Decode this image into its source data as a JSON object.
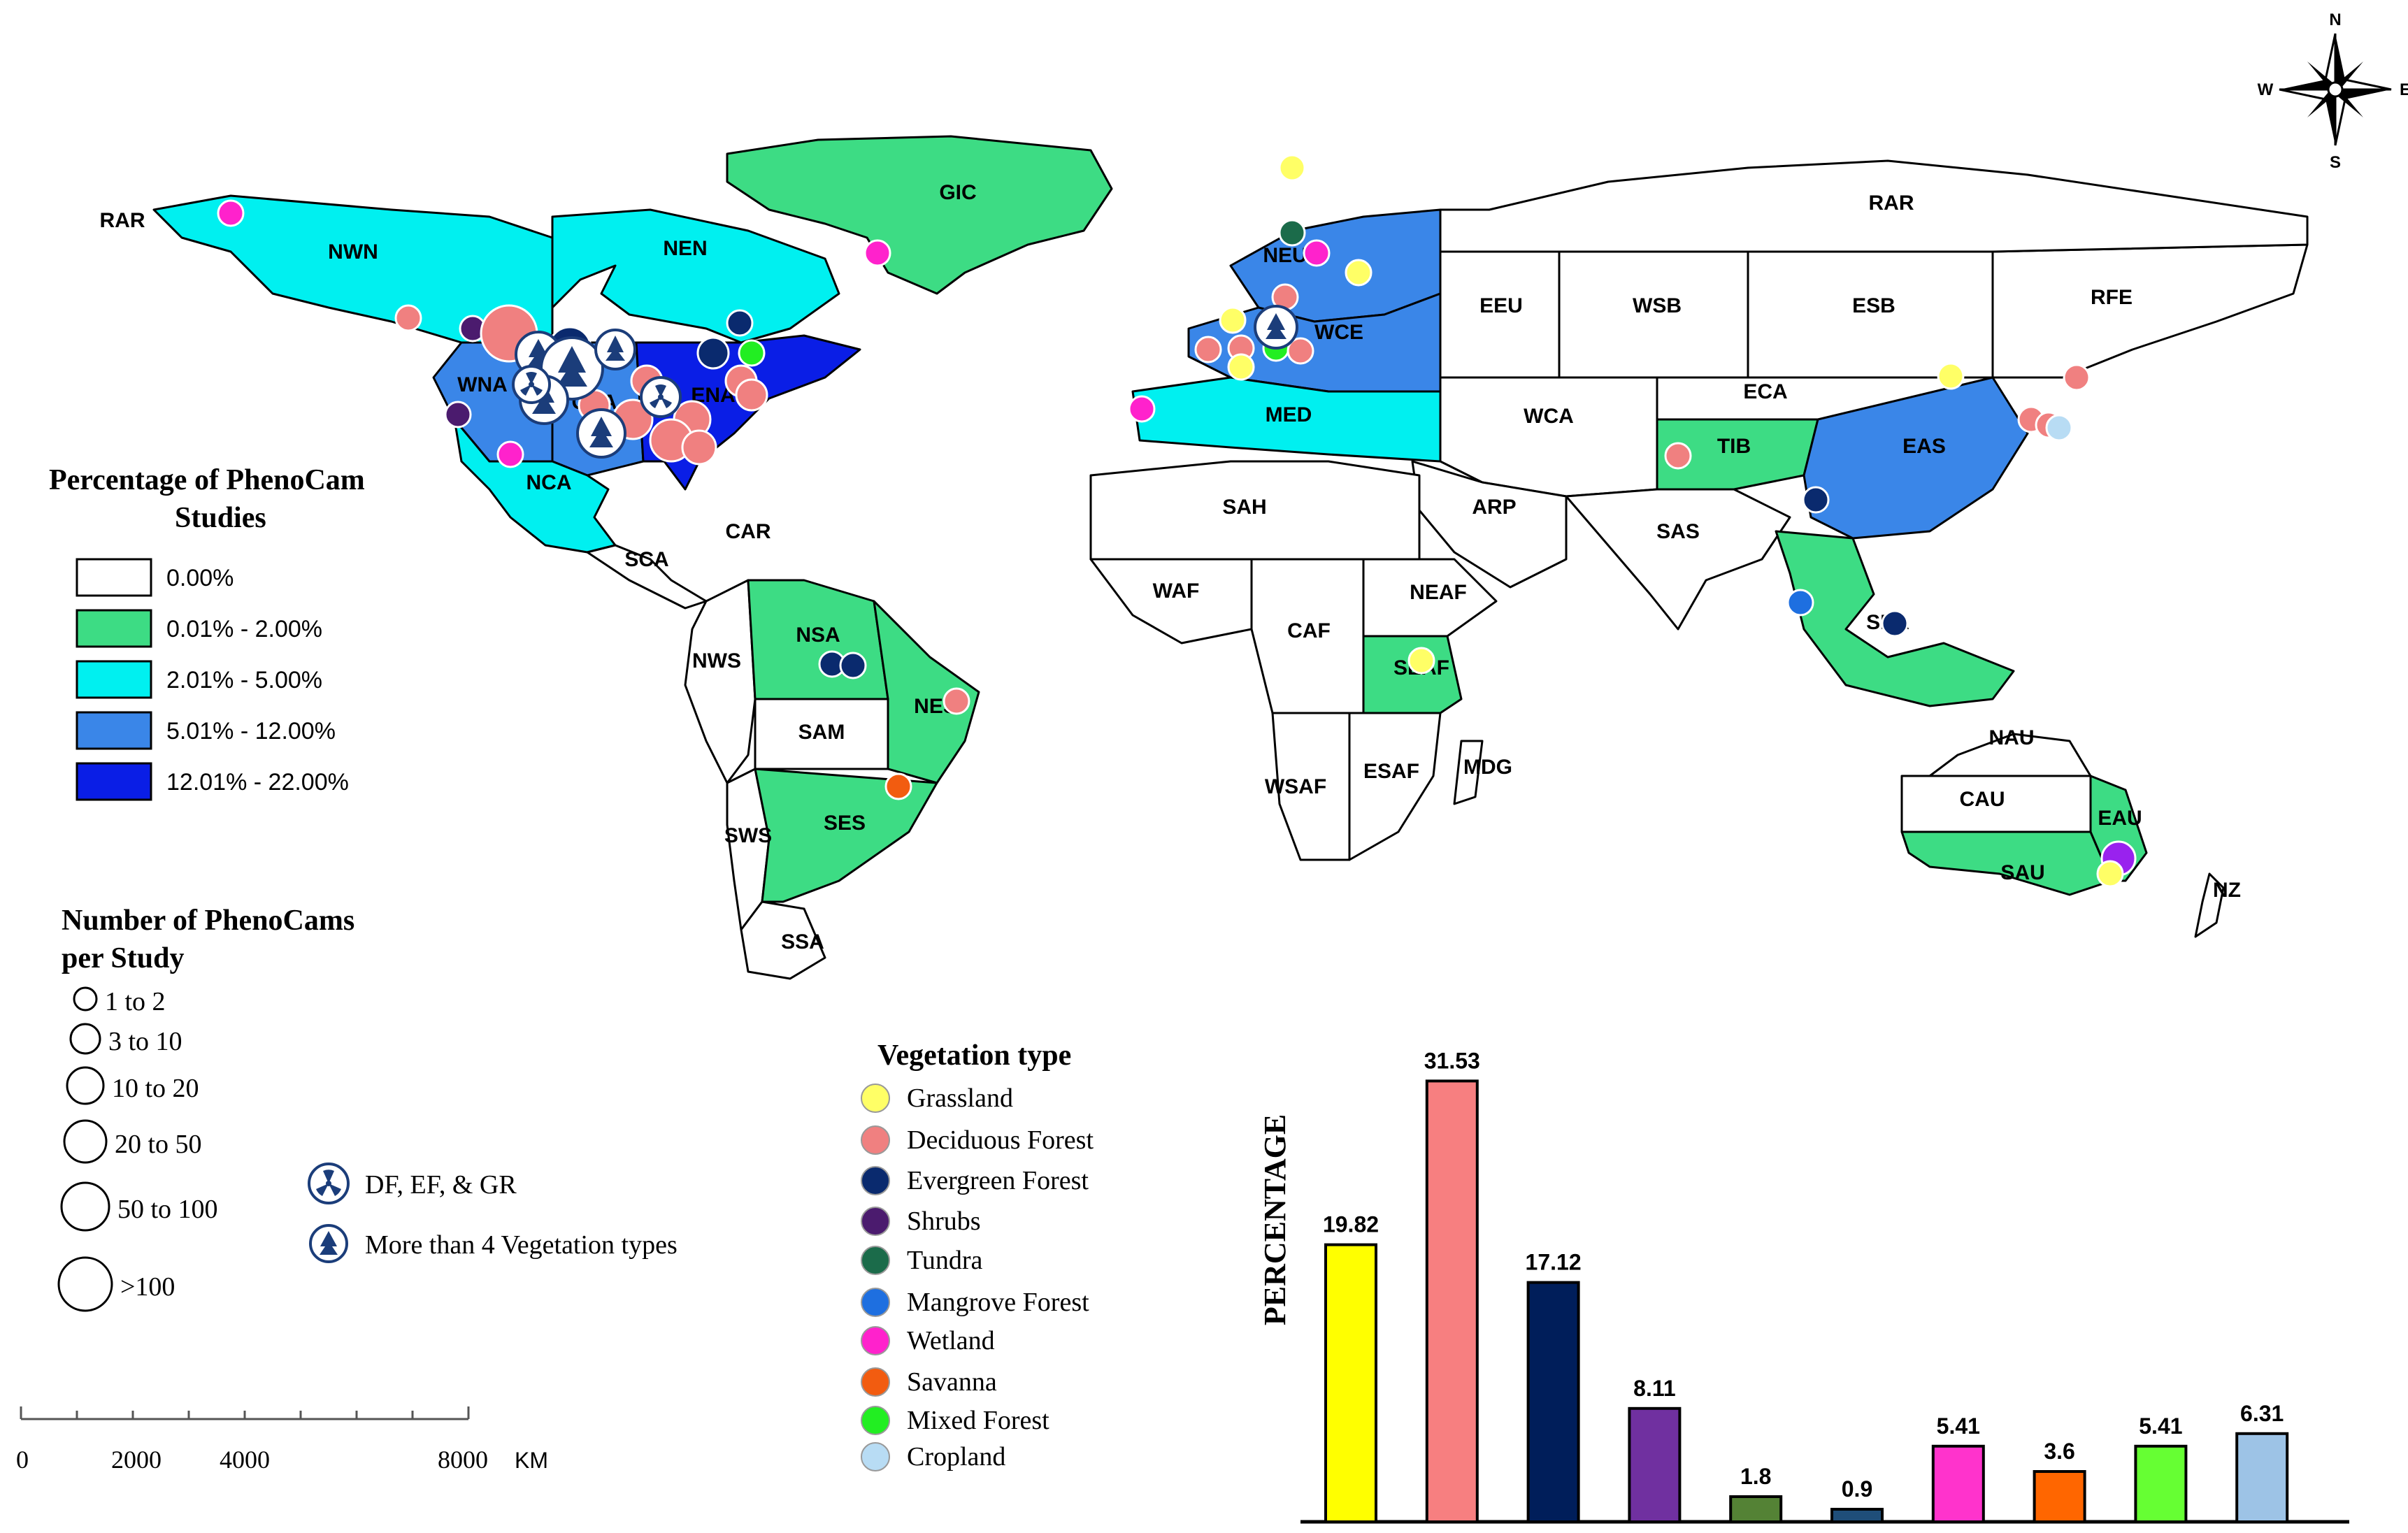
{
  "map": {
    "region_labels": [
      "RAR",
      "NWN",
      "NEN",
      "GIC",
      "WNA",
      "CNA",
      "ENA",
      "NCA",
      "CAR",
      "SCA",
      "NWS",
      "NSA",
      "NES",
      "SAM",
      "SWS",
      "SES",
      "SSA",
      "NEU",
      "WCE",
      "MED",
      "EEU",
      "WSB",
      "ESB",
      "RFE",
      "WCA",
      "ECA",
      "TIB",
      "EAS",
      "SAS",
      "ARP",
      "SAH",
      "WAF",
      "CAF",
      "NEAF",
      "SEAF",
      "WSAF",
      "ESAF",
      "MDG",
      "SEA",
      "NAU",
      "CAU",
      "EAU",
      "SAU",
      "NZ"
    ]
  },
  "compass": {
    "n": "N",
    "s": "S",
    "e": "E",
    "w": "W"
  },
  "legend_percentage": {
    "title_line1": "Percentage of PhenoCam",
    "title_line2": "Studies",
    "classes": [
      {
        "label": "0.00%",
        "color": "#ffffff"
      },
      {
        "label": "0.01% - 2.00%",
        "color": "#3ddc84"
      },
      {
        "label": "2.01% - 5.00%",
        "color": "#00f0f0"
      },
      {
        "label": "5.01% - 12.00%",
        "color": "#3a86e8"
      },
      {
        "label": "12.01% - 22.00%",
        "color": "#0a1ee6"
      }
    ]
  },
  "legend_cameras": {
    "title_line1": "Number of PhenoCams",
    "title_line2": "per Study",
    "classes": [
      "1 to 2",
      "3 to 10",
      "10 to 20",
      "20 to 50",
      "50 to 100",
      ">100"
    ]
  },
  "legend_symbols": {
    "items": [
      {
        "icon": "radiation-symbol-icon",
        "label": "DF, EF, & GR"
      },
      {
        "icon": "tree-symbol-icon",
        "label": "More than 4 Vegetation types"
      }
    ]
  },
  "legend_vegetation": {
    "title": "Vegetation type",
    "items": [
      {
        "label": "Grassland",
        "color": "#ffff66"
      },
      {
        "label": "Deciduous Forest",
        "color": "#f08080"
      },
      {
        "label": "Evergreen Forest",
        "color": "#0a2a6e"
      },
      {
        "label": "Shrubs",
        "color": "#4b1b6e"
      },
      {
        "label": "Tundra",
        "color": "#1b6b4a"
      },
      {
        "label": "Mangrove Forest",
        "color": "#1e6fe0"
      },
      {
        "label": "Wetland",
        "color": "#ff22cc"
      },
      {
        "label": "Savanna",
        "color": "#f25c10"
      },
      {
        "label": "Mixed Forest",
        "color": "#22ee22"
      },
      {
        "label": "Cropland",
        "color": "#b8dcf4"
      }
    ]
  },
  "scale_bar": {
    "ticks": [
      "0",
      "2000",
      "4000",
      "8000"
    ],
    "unit": "KM"
  },
  "chart_data": {
    "type": "bar",
    "title": "",
    "xlabel": "",
    "ylabel": "PERCENTAGE",
    "ylim": [
      0,
      33
    ],
    "categories": [
      "Grassland",
      "Deciduous Forest",
      "Evergreen Forest",
      "Shrubs",
      "Tundra",
      "Mangrove Forest",
      "Wetland",
      "Savanna",
      "Mixed Forest",
      "Cropland"
    ],
    "values": [
      19.82,
      31.53,
      17.12,
      8.11,
      1.8,
      0.9,
      5.41,
      3.6,
      5.41,
      6.31
    ],
    "value_labels": [
      "19.82",
      "31.53",
      "17.12",
      "8.11",
      "1.8",
      "0.9",
      "5.41",
      "3.6",
      "5.41",
      "6.31"
    ],
    "colors": [
      "#ffff00",
      "#f77f80",
      "#001e5a",
      "#7030a0",
      "#548235",
      "#1f4e79",
      "#ff33cc",
      "#ff6600",
      "#66ff33",
      "#9dc3e6"
    ],
    "grid": false,
    "legend": "none"
  }
}
